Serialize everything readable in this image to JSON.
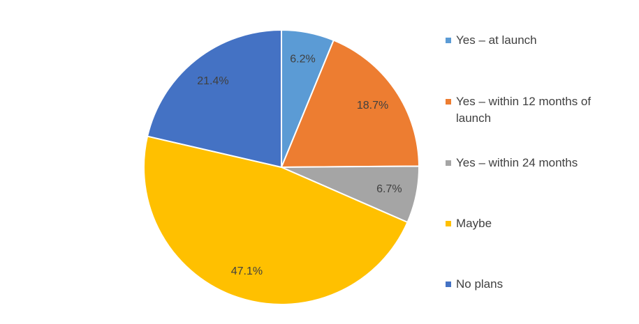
{
  "chart_data": {
    "type": "pie",
    "categories": [
      "Yes – at launch",
      "Yes – within 12 months of launch",
      "Yes – within 24 months",
      "Maybe",
      "No plans"
    ],
    "values": [
      6.2,
      18.7,
      6.7,
      47.1,
      21.4
    ],
    "value_labels": [
      "6.2%",
      "18.7%",
      "6.7%",
      "47.1%",
      "21.4%"
    ],
    "colors": [
      "#5b9bd5",
      "#ed7d31",
      "#a5a5a5",
      "#ffc000",
      "#4472c4"
    ],
    "legend": "right"
  }
}
